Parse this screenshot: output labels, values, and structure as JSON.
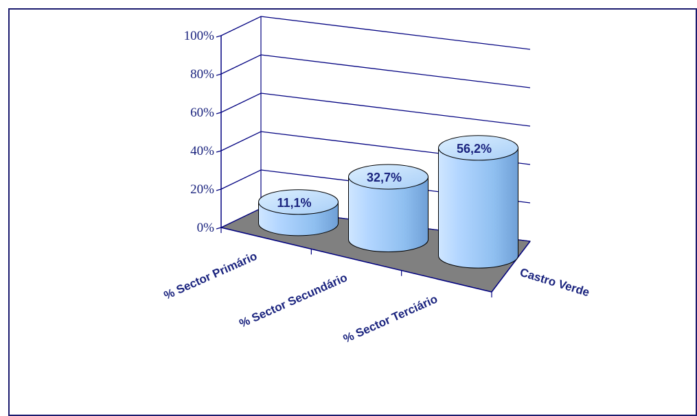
{
  "chart_data": {
    "type": "bar",
    "title": "",
    "xlabel": "",
    "ylabel": "",
    "ylim": [
      0,
      100
    ],
    "yticks": [
      "0%",
      "20%",
      "40%",
      "60%",
      "80%",
      "100%"
    ],
    "categories": [
      "% Sector Primário",
      "% Sector Secundário",
      "% Sector Terciário"
    ],
    "series": [
      {
        "name": "Castro Verde",
        "values": [
          11.1,
          32.7,
          56.2
        ],
        "labels": [
          "11,1%",
          "32,7%",
          "56,2%"
        ]
      }
    ],
    "bar_shape": "cylinder",
    "grid": true,
    "legend": "none",
    "colors": {
      "bar": "#99ccff",
      "floor": "#808080",
      "axis": "#000080",
      "text": "#1a237e"
    }
  }
}
